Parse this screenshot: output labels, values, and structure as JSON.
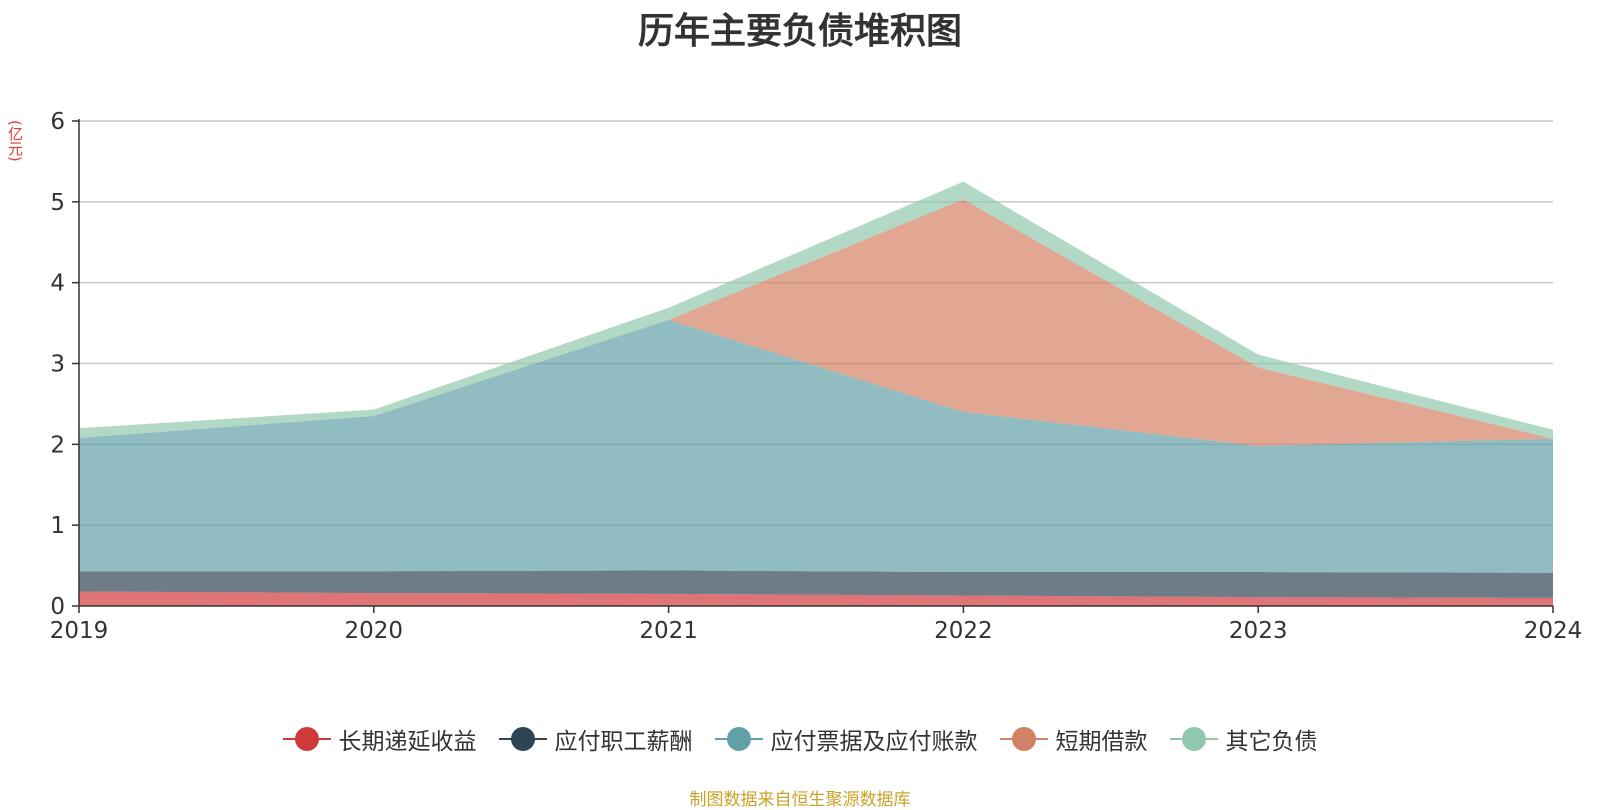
{
  "title": "历年主要负债堆积图",
  "unit_label": "(亿元)",
  "source": "制图数据来自恒生聚源数据库",
  "chart_data": {
    "type": "area",
    "stacked": true,
    "categories": [
      "2019",
      "2020",
      "2021",
      "2022",
      "2023",
      "2024"
    ],
    "ylim": [
      0,
      6
    ],
    "yticks": [
      "0",
      "1",
      "2",
      "3",
      "4",
      "5",
      "6"
    ],
    "grid": true,
    "legend_position": "bottom",
    "series": [
      {
        "name": "长期递延收益",
        "color": "#d0393a",
        "values": [
          0.18,
          0.16,
          0.15,
          0.13,
          0.11,
          0.1
        ]
      },
      {
        "name": "应付职工薪酬",
        "color": "#2f4554",
        "values": [
          0.25,
          0.27,
          0.29,
          0.29,
          0.31,
          0.31
        ]
      },
      {
        "name": "应付票据及应付账款",
        "color": "#61a0a8",
        "values": [
          1.65,
          1.92,
          3.1,
          1.98,
          1.56,
          1.66
        ]
      },
      {
        "name": "短期借款",
        "color": "#d48265",
        "values": [
          0.0,
          0.0,
          0.0,
          2.63,
          0.97,
          0.0
        ]
      },
      {
        "name": "其它负债",
        "color": "#91c7ae",
        "values": [
          0.12,
          0.08,
          0.15,
          0.22,
          0.16,
          0.11
        ]
      }
    ]
  }
}
